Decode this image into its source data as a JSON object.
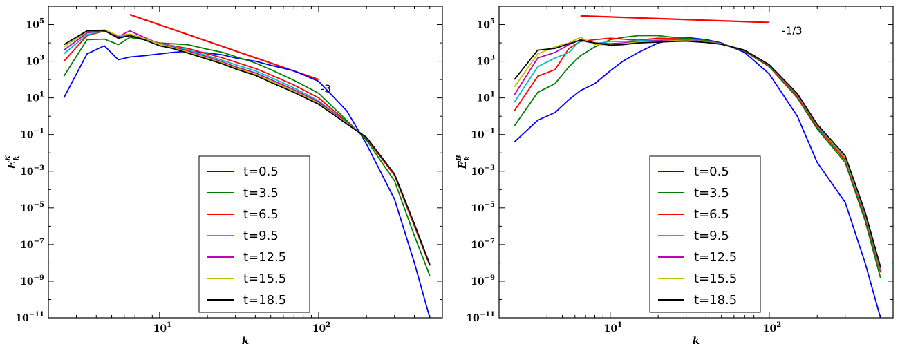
{
  "chart_data": [
    {
      "type": "line",
      "xscale": "log",
      "yscale": "log",
      "xlim": [
        2,
        600
      ],
      "ylim": [
        1e-11,
        1000000.0
      ],
      "xlabel": "k",
      "ylabel": "E",
      "ylabel_sup": "K",
      "ylabel_sub": "k",
      "x_ticks": [
        {
          "value": 10,
          "base": "10",
          "exp": "1"
        },
        {
          "value": 100,
          "base": "10",
          "exp": "2"
        }
      ],
      "y_ticks": [
        {
          "value": 100000.0,
          "base": "10",
          "exp": "5"
        },
        {
          "value": 1000.0,
          "base": "10",
          "exp": "3"
        },
        {
          "value": 10.0,
          "base": "10",
          "exp": "1"
        },
        {
          "value": 0.1,
          "base": "10",
          "exp": "−1"
        },
        {
          "value": 0.001,
          "base": "10",
          "exp": "−3"
        },
        {
          "value": 1e-05,
          "base": "10",
          "exp": "−5"
        },
        {
          "value": 1e-07,
          "base": "10",
          "exp": "−7"
        },
        {
          "value": 1e-09,
          "base": "10",
          "exp": "−9"
        },
        {
          "value": 1e-11,
          "base": "10",
          "exp": "−11"
        }
      ],
      "reference_line": {
        "x": [
          6.5,
          100
        ],
        "y": [
          350000,
          100
        ],
        "color": "#ff0000",
        "label": "-3",
        "label_at": [
          103,
          20
        ]
      },
      "legend_position": "lower-center",
      "series": [
        {
          "name": "t=0.5",
          "color": "#0000ff",
          "x": [
            2.5,
            3.5,
            4.5,
            5.5,
            6.5,
            8,
            10,
            12,
            15,
            20,
            25,
            30,
            40,
            50,
            70,
            100,
            150,
            200,
            300,
            400,
            500
          ],
          "y": [
            10,
            2500,
            7000,
            1200,
            1700,
            2000,
            2500,
            3000,
            3500,
            2800,
            2200,
            1500,
            1000,
            600,
            300,
            80,
            2,
            0.03,
            3e-05,
            1e-08,
            1e-11
          ]
        },
        {
          "name": "t=3.5",
          "color": "#007f00",
          "x": [
            2.5,
            3.5,
            4.5,
            5.5,
            6.5,
            8,
            10,
            12,
            15,
            20,
            25,
            30,
            40,
            50,
            70,
            100,
            150,
            200,
            300,
            400,
            500
          ],
          "y": [
            150,
            15000,
            16000,
            8000,
            20000,
            15000,
            10000,
            9000,
            8000,
            4500,
            3000,
            1800,
            800,
            350,
            90,
            18,
            0.6,
            0.05,
            0.0003,
            3e-07,
            2e-09
          ]
        },
        {
          "name": "t=6.5",
          "color": "#ff0000",
          "x": [
            2.5,
            3.5,
            4.5,
            5.5,
            6.5,
            8,
            10,
            12,
            15,
            20,
            25,
            30,
            40,
            50,
            70,
            100,
            150,
            200,
            300,
            400,
            500
          ],
          "y": [
            1000,
            25000,
            45000,
            20000,
            25000,
            15000,
            10000,
            7000,
            5000,
            2500,
            1500,
            900,
            400,
            180,
            50,
            10,
            0.5,
            0.06,
            0.0006,
            1e-06,
            7e-09
          ]
        },
        {
          "name": "t=9.5",
          "color": "#00bfbf",
          "x": [
            2.5,
            3.5,
            4.5,
            5.5,
            6.5,
            8,
            10,
            12,
            15,
            20,
            25,
            30,
            40,
            50,
            70,
            100,
            150,
            200,
            300,
            400,
            500
          ],
          "y": [
            2500,
            28000,
            48000,
            22000,
            28000,
            16000,
            9500,
            6500,
            4200,
            2000,
            1100,
            650,
            300,
            130,
            35,
            7,
            0.45,
            0.07,
            0.0007,
            1.2e-06,
            8e-09
          ]
        },
        {
          "name": "t=12.5",
          "color": "#bf00bf",
          "x": [
            2.5,
            3.5,
            4.5,
            5.5,
            6.5,
            8,
            10,
            12,
            15,
            20,
            25,
            30,
            40,
            50,
            70,
            100,
            150,
            200,
            300,
            400,
            500
          ],
          "y": [
            4000,
            35000,
            50000,
            22000,
            45000,
            20000,
            9000,
            6000,
            3600,
            1700,
            900,
            500,
            230,
            100,
            28,
            6,
            0.42,
            0.07,
            0.0007,
            1.3e-06,
            8e-09
          ]
        },
        {
          "name": "t=15.5",
          "color": "#bfbf00",
          "x": [
            2.5,
            3.5,
            4.5,
            5.5,
            6.5,
            8,
            10,
            12,
            15,
            20,
            25,
            30,
            40,
            50,
            70,
            100,
            150,
            200,
            300,
            400,
            500
          ],
          "y": [
            6000,
            40000,
            52000,
            25000,
            30000,
            18000,
            8500,
            5500,
            3200,
            1500,
            800,
            430,
            200,
            85,
            24,
            5,
            0.4,
            0.07,
            0.0007,
            1.3e-06,
            8e-09
          ]
        },
        {
          "name": "t=18.5",
          "color": "#000000",
          "x": [
            2.5,
            3.5,
            4.5,
            5.5,
            6.5,
            8,
            10,
            12,
            15,
            20,
            25,
            30,
            40,
            50,
            70,
            100,
            150,
            200,
            300,
            400,
            500
          ],
          "y": [
            8000,
            45000,
            47000,
            18000,
            25000,
            15000,
            7000,
            5000,
            2800,
            1300,
            700,
            380,
            170,
            70,
            20,
            4.5,
            0.38,
            0.07,
            0.0007,
            1.3e-06,
            8e-09
          ]
        }
      ]
    },
    {
      "type": "line",
      "xscale": "log",
      "yscale": "log",
      "xlim": [
        2,
        600
      ],
      "ylim": [
        1e-11,
        1000000.0
      ],
      "xlabel": "k",
      "ylabel": "E",
      "ylabel_sup": "B",
      "ylabel_sub": "k",
      "x_ticks": [
        {
          "value": 10,
          "base": "10",
          "exp": "1"
        },
        {
          "value": 100,
          "base": "10",
          "exp": "2"
        }
      ],
      "y_ticks": [
        {
          "value": 100000.0,
          "base": "10",
          "exp": "5"
        },
        {
          "value": 1000.0,
          "base": "10",
          "exp": "3"
        },
        {
          "value": 10.0,
          "base": "10",
          "exp": "1"
        },
        {
          "value": 0.1,
          "base": "10",
          "exp": "−1"
        },
        {
          "value": 0.001,
          "base": "10",
          "exp": "−3"
        },
        {
          "value": 1e-05,
          "base": "10",
          "exp": "−5"
        },
        {
          "value": 1e-07,
          "base": "10",
          "exp": "−7"
        },
        {
          "value": 1e-09,
          "base": "10",
          "exp": "−9"
        },
        {
          "value": 1e-11,
          "base": "10",
          "exp": "−11"
        }
      ],
      "reference_line": {
        "x": [
          6.5,
          100
        ],
        "y": [
          300000,
          130000
        ],
        "color": "#ff0000",
        "label": "-1/3",
        "label_at": [
          120,
          30000
        ]
      },
      "legend_position": "lower-center",
      "series": [
        {
          "name": "t=0.5",
          "color": "#0000ff",
          "x": [
            2.5,
            3.5,
            4.5,
            5.5,
            6.5,
            8,
            10,
            12,
            15,
            20,
            25,
            30,
            40,
            50,
            70,
            100,
            150,
            200,
            300,
            400,
            500
          ],
          "y": [
            0.04,
            0.6,
            1.6,
            8,
            25,
            60,
            300,
            1000,
            3000,
            10000,
            15000,
            20000,
            15000,
            10000,
            3000,
            200,
            1,
            0.003,
            2e-05,
            1e-08,
            1e-11
          ]
        },
        {
          "name": "t=3.5",
          "color": "#007f00",
          "x": [
            2.5,
            3.5,
            4.5,
            5.5,
            6.5,
            8,
            10,
            12,
            15,
            20,
            25,
            30,
            40,
            50,
            70,
            100,
            150,
            200,
            300,
            400,
            500
          ],
          "y": [
            0.3,
            20,
            60,
            500,
            2000,
            6000,
            15000,
            20000,
            25000,
            25000,
            20000,
            18000,
            14000,
            9000,
            3500,
            500,
            10,
            0.2,
            0.003,
            2e-06,
            1.5e-09
          ]
        },
        {
          "name": "t=6.5",
          "color": "#ff0000",
          "x": [
            2.5,
            3.5,
            4.5,
            5.5,
            6.5,
            8,
            10,
            12,
            15,
            20,
            25,
            30,
            40,
            50,
            70,
            100,
            150,
            200,
            300,
            400,
            500
          ],
          "y": [
            2,
            150,
            350,
            5000,
            12000,
            15000,
            18000,
            16000,
            14000,
            18000,
            17000,
            15000,
            12000,
            9000,
            3800,
            550,
            12,
            0.25,
            0.004,
            3e-06,
            3e-09
          ]
        },
        {
          "name": "t=9.5",
          "color": "#00bfbf",
          "x": [
            2.5,
            3.5,
            4.5,
            5.5,
            6.5,
            8,
            10,
            12,
            15,
            20,
            25,
            30,
            40,
            50,
            70,
            100,
            150,
            200,
            300,
            400,
            500
          ],
          "y": [
            6,
            500,
            1500,
            3000,
            14000,
            9000,
            12000,
            12000,
            13000,
            14000,
            15000,
            14000,
            12000,
            9000,
            4000,
            600,
            14,
            0.3,
            0.005,
            4e-06,
            4e-09
          ]
        },
        {
          "name": "t=12.5",
          "color": "#bf00bf",
          "x": [
            2.5,
            3.5,
            4.5,
            5.5,
            6.5,
            8,
            10,
            12,
            15,
            20,
            25,
            30,
            40,
            50,
            70,
            100,
            150,
            200,
            300,
            400,
            500
          ],
          "y": [
            15,
            1500,
            3000,
            8000,
            15000,
            10000,
            9000,
            10000,
            12000,
            13000,
            14000,
            13500,
            11500,
            8800,
            4000,
            620,
            15,
            0.32,
            0.006,
            5e-06,
            5e-09
          ]
        },
        {
          "name": "t=15.5",
          "color": "#bfbf00",
          "x": [
            2.5,
            3.5,
            4.5,
            5.5,
            6.5,
            8,
            10,
            12,
            15,
            20,
            25,
            30,
            40,
            50,
            70,
            100,
            150,
            200,
            300,
            400,
            500
          ],
          "y": [
            40,
            2500,
            6000,
            10000,
            20000,
            8000,
            8000,
            9000,
            11000,
            12000,
            13000,
            13000,
            11000,
            8600,
            4000,
            630,
            16,
            0.34,
            0.006,
            5.5e-06,
            5.5e-09
          ]
        },
        {
          "name": "t=18.5",
          "color": "#000000",
          "x": [
            2.5,
            3.5,
            4.5,
            5.5,
            6.5,
            8,
            10,
            12,
            15,
            20,
            25,
            30,
            40,
            50,
            70,
            100,
            150,
            200,
            300,
            400,
            500
          ],
          "y": [
            100,
            4000,
            5000,
            9000,
            14000,
            10000,
            7500,
            8000,
            10000,
            11000,
            12000,
            12500,
            10500,
            8400,
            4000,
            640,
            17,
            0.36,
            0.007,
            6e-06,
            6e-09
          ]
        }
      ]
    }
  ]
}
